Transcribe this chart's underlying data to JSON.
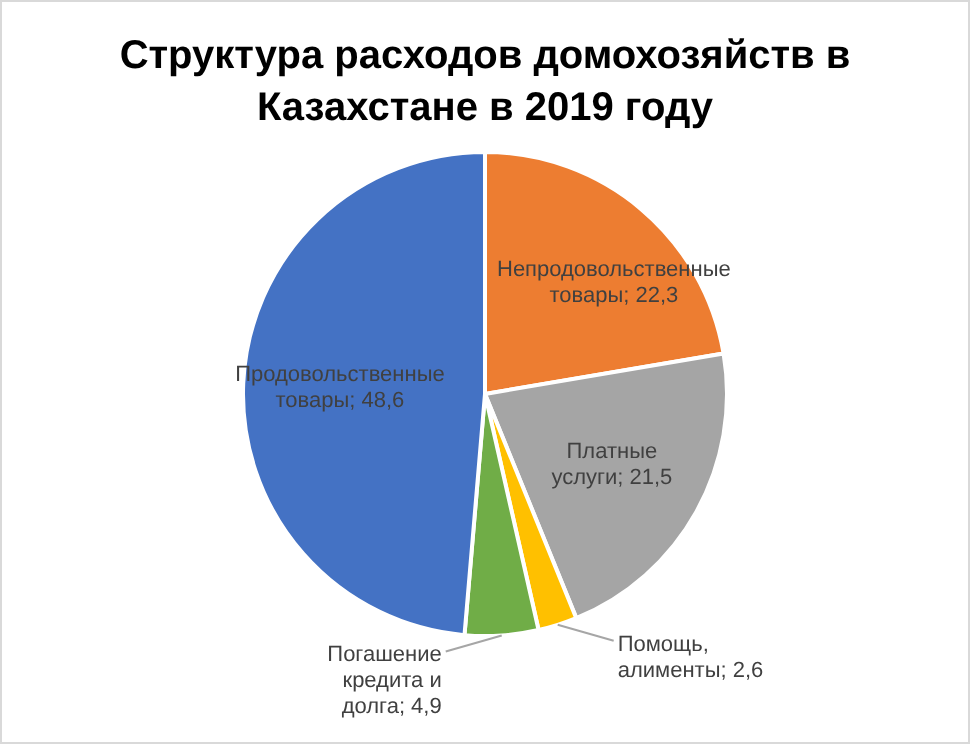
{
  "chart_data": {
    "type": "pie",
    "title": "Структура расходов домохозяйств в Казахстане в 2019 году",
    "categories": [
      "Непродовольственные товары",
      "Платные услуги",
      "Помощь, алименты",
      "Погашение кредита и долга",
      "Продовольственные товары"
    ],
    "values": [
      22.3,
      21.5,
      2.6,
      4.9,
      48.6
    ],
    "value_labels": [
      "22,3",
      "21,5",
      "2,6",
      "4,9",
      "48,6"
    ],
    "colors": [
      "#ed7d31",
      "#a5a5a5",
      "#ffc000",
      "#70ad47",
      "#4472c4"
    ],
    "legend": false
  }
}
